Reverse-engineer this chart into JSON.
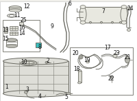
{
  "bg_color": "#f0efea",
  "line_color": "#7a7a72",
  "dark_line": "#6a6a62",
  "highlight_color": "#3bbfbf",
  "font_size": 5.5,
  "label_color": "#111111",
  "white": "#ffffff",
  "light_gray": "#d8d8d0",
  "mid_gray": "#b8b8b0",
  "tank_fill": "#deded8",
  "canister_fill": "#e8e8e0"
}
